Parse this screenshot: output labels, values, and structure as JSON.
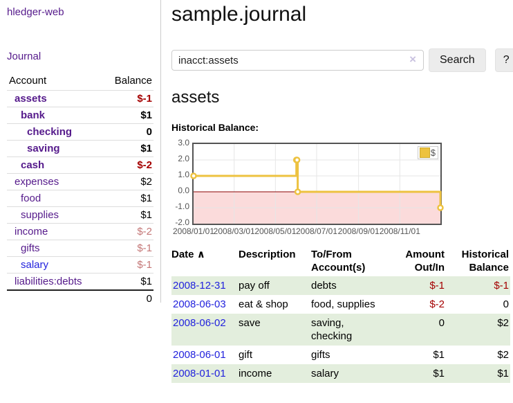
{
  "sidebar": {
    "app_title": "hledger-web",
    "journal_label": "Journal",
    "accounts_table": {
      "headers": {
        "account": "Account",
        "balance": "Balance"
      },
      "rows": [
        {
          "name": "assets",
          "depth": 1,
          "match": true,
          "balance": "$-1",
          "neg": "strong"
        },
        {
          "name": "bank",
          "depth": 2,
          "match": true,
          "balance": "$1",
          "neg": ""
        },
        {
          "name": "checking",
          "depth": 3,
          "match": true,
          "balance": "0",
          "neg": ""
        },
        {
          "name": "saving",
          "depth": 3,
          "match": true,
          "balance": "$1",
          "neg": ""
        },
        {
          "name": "cash",
          "depth": 2,
          "match": true,
          "balance": "$-2",
          "neg": "strong"
        },
        {
          "name": "expenses",
          "depth": 1,
          "match": false,
          "balance": "$2",
          "neg": ""
        },
        {
          "name": "food",
          "depth": 2,
          "match": false,
          "balance": "$1",
          "neg": ""
        },
        {
          "name": "supplies",
          "depth": 2,
          "match": false,
          "balance": "$1",
          "neg": ""
        },
        {
          "name": "income",
          "depth": 1,
          "match": false,
          "balance": "$-2",
          "neg": "soft"
        },
        {
          "name": "gifts",
          "depth": 2,
          "match": false,
          "balance": "$-1",
          "neg": "soft"
        },
        {
          "name": "salary",
          "depth": 2,
          "match": false,
          "balance": "$-1",
          "neg": "soft",
          "link": "blue"
        },
        {
          "name": "liabilities:debts",
          "depth": 1,
          "match": false,
          "balance": "$1",
          "neg": ""
        }
      ],
      "total": "0"
    }
  },
  "header": {
    "title": "sample.journal"
  },
  "search": {
    "value": "inacct:assets",
    "clear_icon": "×",
    "button_label": "Search",
    "help_label": "?"
  },
  "account_page": {
    "heading": "assets",
    "chart_label": "Historical Balance:"
  },
  "chart_data": {
    "type": "line",
    "step": true,
    "series": [
      {
        "name": "$",
        "color": "#edc240",
        "points": [
          [
            "2008-01-01",
            1
          ],
          [
            "2008-06-01",
            2
          ],
          [
            "2008-06-02",
            2
          ],
          [
            "2008-06-03",
            0
          ],
          [
            "2008-12-31",
            -1
          ]
        ]
      }
    ],
    "x_range": [
      "2008-01-01",
      "2008-12-31"
    ],
    "ylim": [
      -2,
      3
    ],
    "y_ticks": [
      "3.0",
      "2.0",
      "1.0",
      "0.0",
      "-1.0",
      "-2.0"
    ],
    "x_ticks": [
      "2008/01/01",
      "2008/03/01",
      "2008/05/01",
      "2008/07/01",
      "2008/09/01",
      "2008/11/01"
    ],
    "legend": {
      "label": "$",
      "position": "top-right"
    },
    "grid": true,
    "negative_region_color": "#fbdbdb",
    "zero_line_color": "#8b0000",
    "grid_color": "#e6e6e6"
  },
  "register_table": {
    "headers": {
      "date": "Date",
      "sort_icon": "∧",
      "description": "Description",
      "accounts": "To/From Account(s)",
      "amount": "Amount Out/In",
      "balance": "Historical Balance"
    },
    "rows": [
      {
        "date": "2008-12-31",
        "description": "pay off",
        "accounts": "debts",
        "amount": "$-1",
        "amount_neg": true,
        "balance": "$-1",
        "balance_neg": true
      },
      {
        "date": "2008-06-03",
        "description": "eat & shop",
        "accounts": "food, supplies",
        "amount": "$-2",
        "amount_neg": true,
        "balance": "0",
        "balance_neg": false
      },
      {
        "date": "2008-06-02",
        "description": "save",
        "accounts": "saving, checking",
        "amount": "0",
        "amount_neg": false,
        "balance": "$2",
        "balance_neg": false
      },
      {
        "date": "2008-06-01",
        "description": "gift",
        "accounts": "gifts",
        "amount": "$1",
        "amount_neg": false,
        "balance": "$2",
        "balance_neg": false
      },
      {
        "date": "2008-01-01",
        "description": "income",
        "accounts": "salary",
        "amount": "$1",
        "amount_neg": false,
        "balance": "$1",
        "balance_neg": false
      }
    ]
  },
  "colors": {
    "link_purple": "#551a8b",
    "link_blue": "#2222dd",
    "negative_strong": "#a40000",
    "negative_soft": "#c47777",
    "row_green": "#e3eedd",
    "chart_line": "#edc240",
    "chart_negative_region": "#fbdbdb",
    "chart_zero_line": "#8b0000",
    "button_bg": "#ececec"
  }
}
